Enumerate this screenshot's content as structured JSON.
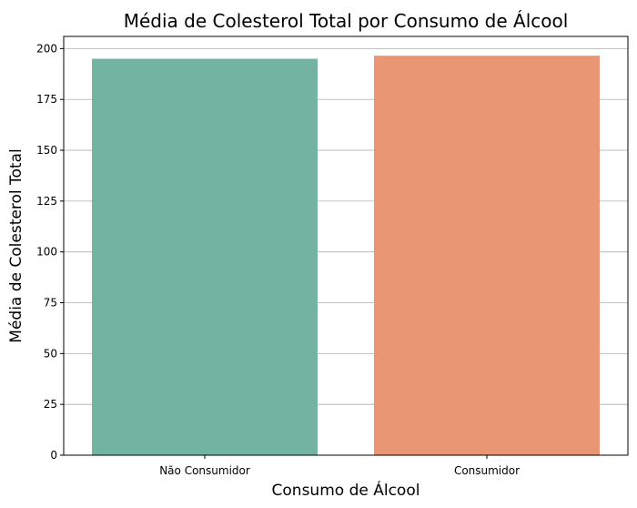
{
  "chart_data": {
    "type": "bar",
    "title": "Média de Colesterol Total por Consumo de Álcool",
    "xlabel": "Consumo de Álcool",
    "ylabel": "Média de Colesterol Total",
    "categories": [
      "Não Consumidor",
      "Consumidor"
    ],
    "values": [
      195,
      196.5
    ],
    "colors": [
      "#72b3a1",
      "#e99674"
    ],
    "ylim": [
      0,
      206
    ],
    "yticks": [
      0,
      25,
      50,
      75,
      100,
      125,
      150,
      175,
      200
    ],
    "grid": "y"
  }
}
